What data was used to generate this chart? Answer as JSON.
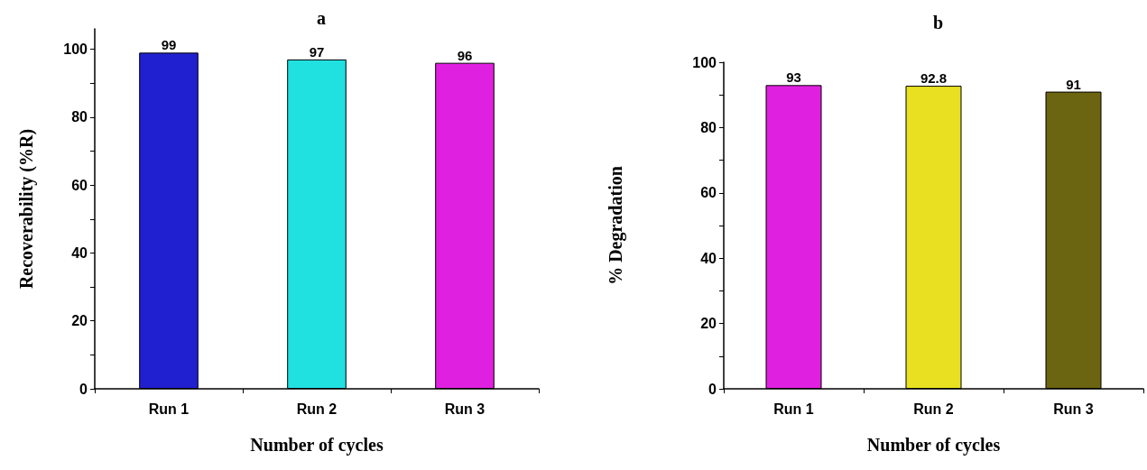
{
  "chart_data": [
    {
      "type": "bar",
      "title": "a",
      "xlabel": "Number of cycles",
      "ylabel": "Recoverability (%R)",
      "categories": [
        "Run 1",
        "Run 2",
        "Run 3"
      ],
      "values": [
        99,
        97,
        96
      ],
      "colors": [
        "#2020d0",
        "#20e0e0",
        "#e020e0"
      ],
      "ylim": [
        0,
        106
      ],
      "yticks": [
        0,
        {
          "value": 10,
          "label": null
        },
        20,
        {
          "value": 30,
          "label": null
        },
        40,
        {
          "value": 50,
          "label": null
        },
        60,
        {
          "value": 70,
          "label": null
        },
        80,
        {
          "value": 90,
          "label": null
        },
        100
      ],
      "data_labels": true
    },
    {
      "type": "bar",
      "title": "b",
      "xlabel": "Number of cycles",
      "ylabel": "% Degradation",
      "categories": [
        "Run 1",
        "Run 2",
        "Run 3"
      ],
      "values": [
        93,
        92.8,
        91
      ],
      "colors": [
        "#e020e0",
        "#e8e020",
        "#6b6410"
      ],
      "ylim": [
        0,
        100
      ],
      "yticks": [
        0,
        {
          "value": 10,
          "label": null
        },
        20,
        {
          "value": 30,
          "label": null
        },
        40,
        {
          "value": 50,
          "label": null
        },
        60,
        {
          "value": 70,
          "label": null
        },
        80,
        {
          "value": 90,
          "label": null
        },
        100
      ],
      "data_labels": true
    }
  ]
}
